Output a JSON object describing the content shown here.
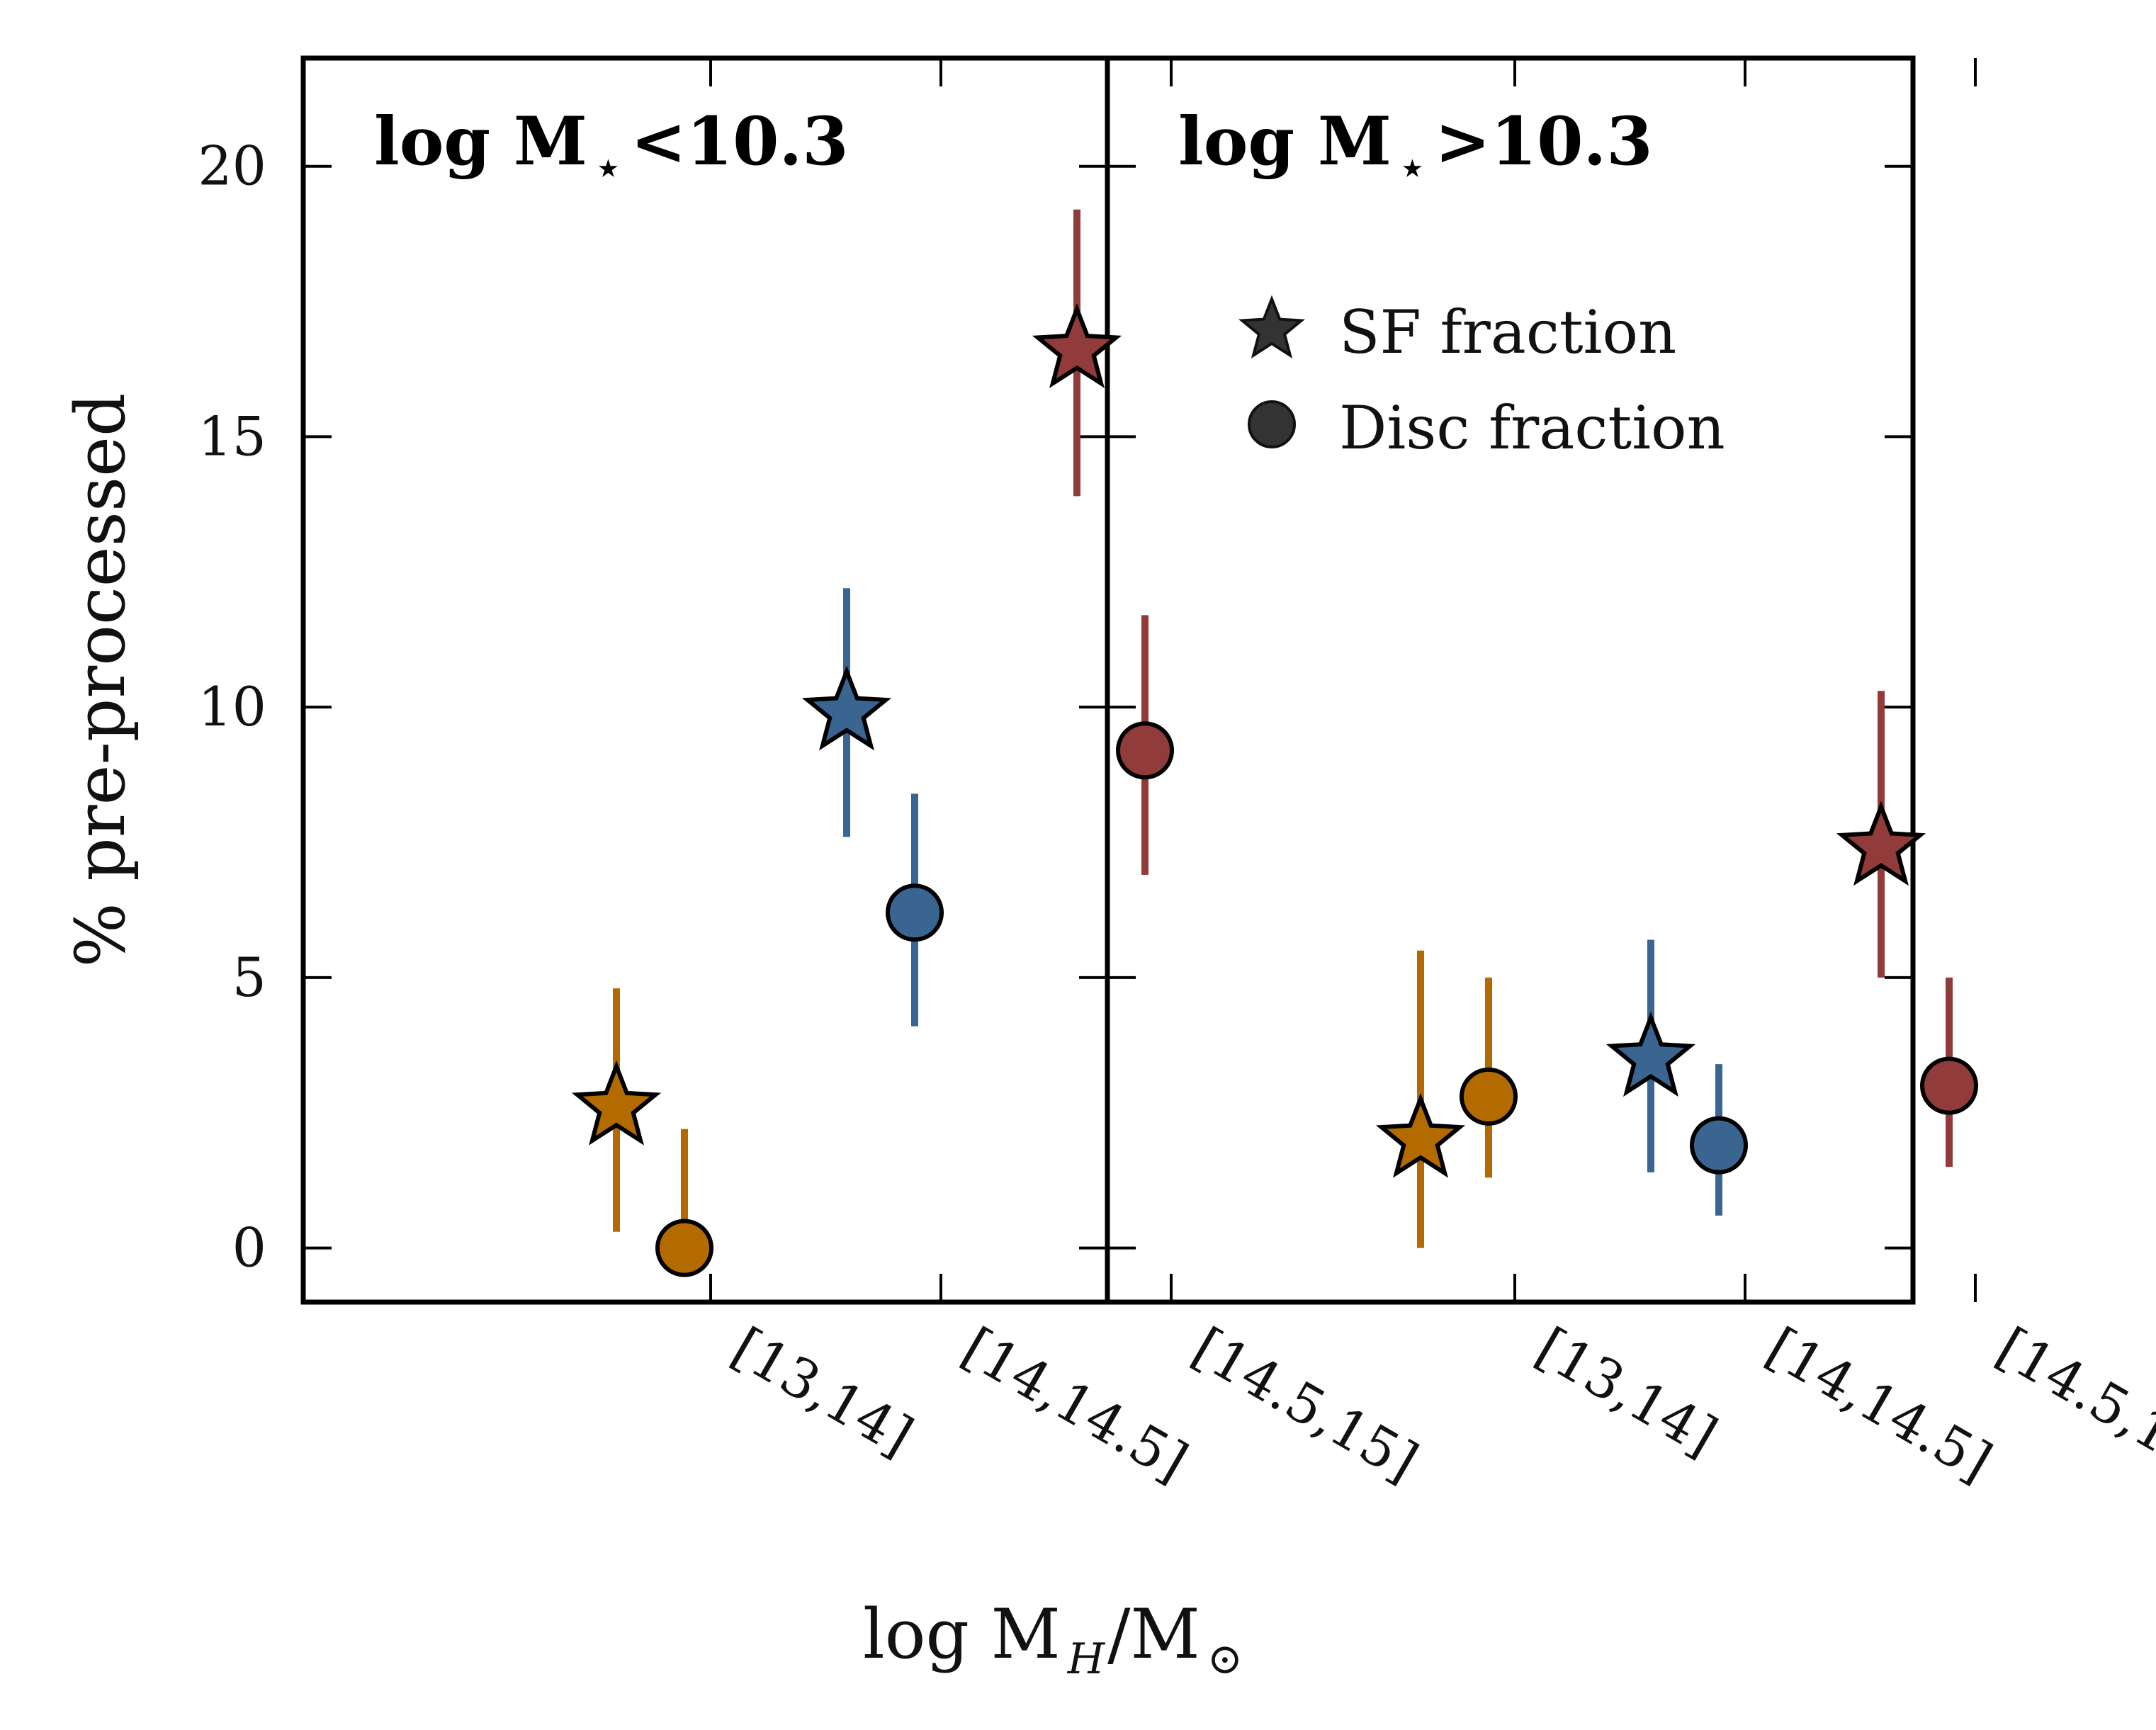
{
  "chart_data": {
    "type": "scatter",
    "ylabel": "% pre-processed",
    "xlabel": "log M_H/M_⊙",
    "xlabel_parts": {
      "main": "log M",
      "sub": "H",
      "tail": "/M",
      "sun": "⊙"
    },
    "ylim": [
      -1,
      22
    ],
    "yticks": [
      0,
      5,
      10,
      15,
      20
    ],
    "categories": [
      "[13,14]",
      "[14,14.5]",
      "[14.5,15]"
    ],
    "colors": {
      "[13,14]": "#b36b00",
      "[14,14.5]": "#3a6591",
      "[14.5,15]": "#913b3b"
    },
    "legend": {
      "position": "upper-right",
      "entries": [
        {
          "marker": "star",
          "label": "SF fraction"
        },
        {
          "marker": "circle",
          "label": "Disc fraction"
        }
      ]
    },
    "panels": [
      {
        "title_parts": {
          "main": "log M",
          "sub": "⋆",
          "tail": "<10.3"
        },
        "series": [
          {
            "marker": "star",
            "points": [
              {
                "category": "[13,14]",
                "y": 2.6,
                "err_low": 2.3,
                "err_high": 2.2
              },
              {
                "category": "[14,14.5]",
                "y": 9.9,
                "err_low": 2.3,
                "err_high": 2.3
              },
              {
                "category": "[14.5,15]",
                "y": 16.6,
                "err_low": 2.7,
                "err_high": 2.6
              }
            ]
          },
          {
            "marker": "circle",
            "points": [
              {
                "category": "[13,14]",
                "y": 0.0,
                "err_low": 0.0,
                "err_high": 2.2
              },
              {
                "category": "[14,14.5]",
                "y": 6.2,
                "err_low": 2.1,
                "err_high": 2.2
              },
              {
                "category": "[14.5,15]",
                "y": 9.2,
                "err_low": 2.3,
                "err_high": 2.5
              }
            ]
          }
        ]
      },
      {
        "title_parts": {
          "main": "log M",
          "sub": "⋆",
          "tail": ">10.3"
        },
        "series": [
          {
            "marker": "star",
            "points": [
              {
                "category": "[13,14]",
                "y": 2.0,
                "err_low": 2.0,
                "err_high": 3.5
              },
              {
                "category": "[14,14.5]",
                "y": 3.5,
                "err_low": 2.1,
                "err_high": 2.2
              },
              {
                "category": "[14.5,15]",
                "y": 7.4,
                "err_low": 2.4,
                "err_high": 2.9
              }
            ]
          },
          {
            "marker": "circle",
            "points": [
              {
                "category": "[13,14]",
                "y": 2.8,
                "err_low": 1.5,
                "err_high": 2.2
              },
              {
                "category": "[14,14.5]",
                "y": 1.9,
                "err_low": 1.3,
                "err_high": 1.5
              },
              {
                "category": "[14.5,15]",
                "y": 3.0,
                "err_low": 1.5,
                "err_high": 2.0
              }
            ]
          }
        ]
      }
    ]
  }
}
